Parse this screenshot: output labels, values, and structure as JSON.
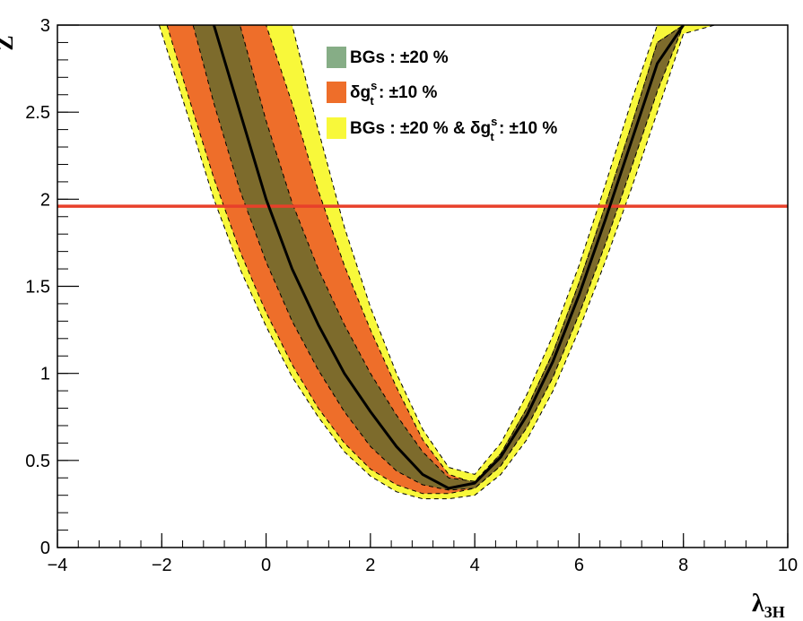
{
  "chart_data": {
    "type": "line",
    "xlabel": "λ",
    "xlabel_sub": "3H",
    "ylabel": "Z",
    "xlim": [
      -4,
      10
    ],
    "ylim": [
      0,
      3
    ],
    "x_ticks": [
      -4,
      -2,
      0,
      2,
      4,
      6,
      8,
      10
    ],
    "x_tick_labels": [
      "−4",
      "−2",
      "0",
      "2",
      "4",
      "6",
      "8",
      "10"
    ],
    "y_ticks": [
      0,
      0.5,
      1,
      1.5,
      2,
      2.5,
      3
    ],
    "y_tick_labels": [
      "0",
      "0.5",
      "1",
      "1.5",
      "2",
      "2.5",
      "3"
    ],
    "reference_line": {
      "y": 1.96,
      "color": "#e8402a"
    },
    "legend": [
      {
        "prefix": "BGs : ±20 %",
        "color": "#86ad86"
      },
      {
        "prefix": "δg",
        "sub": "t",
        "sup": "s",
        "suffix": " : ±10 %",
        "color": "#ee6e2a"
      },
      {
        "prefix": "BGs : ±20 % & δg",
        "sub": "t",
        "sup": "s",
        "suffix": " : ±10 %",
        "color": "#f8f83a"
      }
    ],
    "central": {
      "x": [
        -1.0,
        -0.5,
        0.0,
        0.5,
        1.0,
        1.5,
        2.0,
        2.5,
        3.0,
        3.5,
        4.0,
        4.5,
        5.0,
        5.5,
        6.0,
        6.5,
        7.0,
        7.5,
        8.0
      ],
      "y": [
        3.0,
        2.5,
        2.0,
        1.6,
        1.28,
        1.0,
        0.78,
        0.58,
        0.42,
        0.34,
        0.37,
        0.52,
        0.76,
        1.07,
        1.45,
        1.88,
        2.33,
        2.78,
        3.0
      ]
    },
    "green_band": {
      "x": [
        -1.4,
        -1.0,
        -0.5,
        0.0,
        0.5,
        1.0,
        1.5,
        2.0,
        2.5,
        3.0,
        3.5,
        4.0,
        4.5,
        5.0,
        5.5,
        6.0,
        6.5,
        7.0,
        7.5,
        8.0,
        8.3
      ],
      "lower": [
        3.0,
        2.55,
        2.05,
        1.64,
        1.3,
        1.02,
        0.78,
        0.58,
        0.44,
        0.36,
        0.33,
        0.34,
        0.47,
        0.69,
        0.98,
        1.34,
        1.74,
        2.18,
        2.62,
        3.0,
        3.0
      ],
      "upper": [
        3.0,
        3.0,
        3.0,
        2.45,
        1.98,
        1.6,
        1.28,
        1.0,
        0.76,
        0.55,
        0.4,
        0.38,
        0.54,
        0.8,
        1.12,
        1.52,
        1.96,
        2.42,
        2.9,
        3.0,
        3.0
      ]
    },
    "orange_band": {
      "x": [
        -1.9,
        -1.5,
        -1.0,
        -0.5,
        0.0,
        0.5,
        1.0,
        1.5,
        2.0,
        2.5,
        3.0,
        3.5,
        4.0,
        4.5,
        5.0,
        5.5,
        6.0,
        6.5,
        7.0,
        7.5,
        8.0,
        8.4
      ],
      "lower": [
        3.0,
        2.6,
        2.12,
        1.7,
        1.35,
        1.05,
        0.8,
        0.6,
        0.45,
        0.36,
        0.31,
        0.31,
        0.34,
        0.47,
        0.69,
        0.98,
        1.34,
        1.74,
        2.18,
        2.62,
        3.0,
        3.0
      ],
      "upper": [
        3.0,
        3.0,
        3.0,
        3.0,
        3.0,
        2.55,
        2.05,
        1.62,
        1.25,
        0.92,
        0.62,
        0.42,
        0.37,
        0.54,
        0.8,
        1.12,
        1.52,
        1.96,
        2.42,
        2.9,
        3.0,
        3.0
      ]
    },
    "yellow_band": {
      "x": [
        -2.05,
        -1.5,
        -1.0,
        -0.5,
        0.0,
        0.5,
        1.0,
        1.5,
        2.0,
        2.5,
        3.0,
        3.5,
        4.0,
        4.5,
        5.0,
        5.5,
        6.0,
        6.5,
        7.0,
        7.5,
        8.0,
        8.6
      ],
      "lower": [
        3.0,
        2.48,
        2.0,
        1.6,
        1.27,
        0.98,
        0.75,
        0.55,
        0.41,
        0.32,
        0.28,
        0.28,
        0.3,
        0.42,
        0.62,
        0.9,
        1.25,
        1.64,
        2.06,
        2.5,
        2.95,
        3.0
      ],
      "upper": [
        3.0,
        3.0,
        3.0,
        3.0,
        3.0,
        3.0,
        2.4,
        1.84,
        1.38,
        1.0,
        0.68,
        0.46,
        0.42,
        0.6,
        0.88,
        1.22,
        1.62,
        2.08,
        2.56,
        3.0,
        3.0,
        3.0
      ]
    }
  }
}
